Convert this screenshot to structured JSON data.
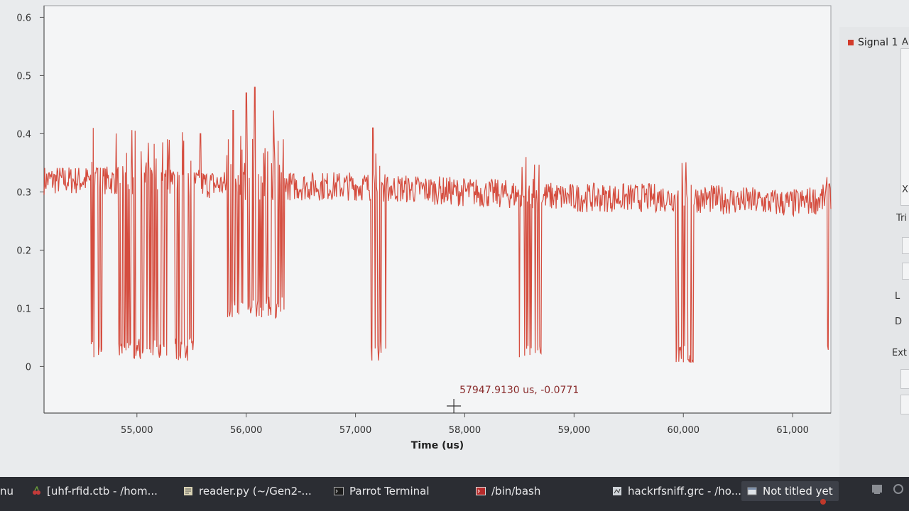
{
  "taskbar": {
    "menu_label": "nu",
    "tasks": [
      {
        "label": "[uhf-rfid.ctb - /hom...",
        "icon": "cherrytree-icon"
      },
      {
        "label": "reader.py (~/Gen2-...",
        "icon": "text-editor-icon"
      },
      {
        "label": "Parrot Terminal",
        "icon": "terminal-icon"
      },
      {
        "label": "/bin/bash",
        "icon": "terminal-icon"
      },
      {
        "label": "hackrfsniff.grc - /ho...",
        "icon": "gnuradio-icon"
      },
      {
        "label": "Not titled yet",
        "icon": "window-icon"
      }
    ]
  },
  "right_panel": {
    "legend_label": "Signal 1",
    "partial_labels": [
      "A",
      "Tri",
      "L",
      "D",
      "Ext",
      "X"
    ]
  },
  "plot": {
    "cursor_readout": "57947.9130 us, -0.0771",
    "xlabel": "Time (us)",
    "y_ticks": [
      "0.6",
      "0.5",
      "0.4",
      "0.3",
      "0.2",
      "0.1",
      "0"
    ],
    "x_ticks": [
      "55,000",
      "56,000",
      "57,000",
      "58,000",
      "59,000",
      "60,000",
      "61,000"
    ],
    "series_color": "#d23b2b"
  },
  "chart_data": {
    "type": "line",
    "title": "",
    "xlabel": "Time (us)",
    "ylabel": "",
    "xlim": [
      54150,
      61350
    ],
    "ylim": [
      -0.08,
      0.62
    ],
    "grid": false,
    "legend": "right",
    "series": [
      {
        "name": "Signal 1",
        "color": "#d23b2b",
        "baseline": {
          "x": [
            54150,
            55000,
            56000,
            57000,
            58000,
            59000,
            60000,
            61000,
            61350
          ],
          "y": [
            0.32,
            0.32,
            0.31,
            0.31,
            0.3,
            0.29,
            0.29,
            0.28,
            0.29
          ]
        },
        "dips": [
          {
            "x_start": 54580,
            "x_end": 54680,
            "min": 0.01
          },
          {
            "x_start": 54800,
            "x_end": 55300,
            "min": 0.01
          },
          {
            "x_start": 55340,
            "x_end": 55520,
            "min": 0.01
          },
          {
            "x_start": 55820,
            "x_end": 56360,
            "min": 0.08
          },
          {
            "x_start": 57140,
            "x_end": 57290,
            "min": 0.01
          },
          {
            "x_start": 58500,
            "x_end": 58700,
            "min": 0.0
          },
          {
            "x_start": 59930,
            "x_end": 60090,
            "min": 0.0
          },
          {
            "x_start": 61300,
            "x_end": 61330,
            "min": 0.0
          }
        ],
        "spikes": [
          {
            "x": 54600,
            "y": 0.41
          },
          {
            "x": 55580,
            "y": 0.4
          },
          {
            "x": 55880,
            "y": 0.44
          },
          {
            "x": 56000,
            "y": 0.47
          },
          {
            "x": 56080,
            "y": 0.48
          },
          {
            "x": 56250,
            "y": 0.44
          },
          {
            "x": 57160,
            "y": 0.41
          },
          {
            "x": 58560,
            "y": 0.36
          }
        ]
      }
    ]
  }
}
